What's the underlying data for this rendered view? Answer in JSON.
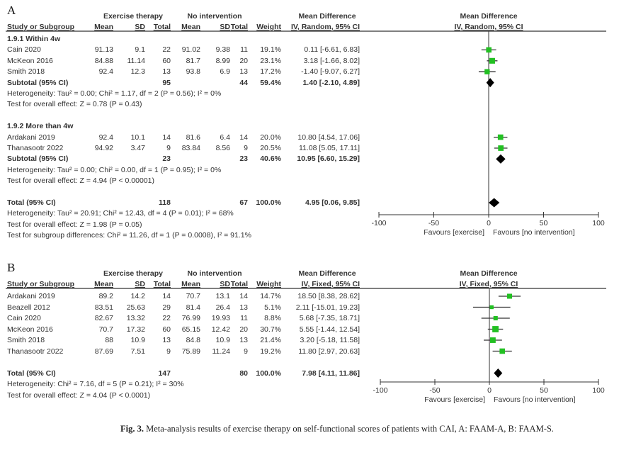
{
  "chart_data": [
    {
      "type": "forest",
      "panel": "A",
      "group_headers": {
        "exercise": "Exercise therapy",
        "control": "No intervention",
        "md": "Mean Difference"
      },
      "col_headers": [
        "Study or Subgroup",
        "Mean",
        "SD",
        "Total",
        "Mean",
        "SD",
        "Total",
        "Weight",
        "IV, Random, 95% CI"
      ],
      "plot_header": [
        "Mean Difference",
        "IV, Random, 95% CI"
      ],
      "axis": {
        "xlim": [
          -100,
          100
        ],
        "ticks": [
          "-100",
          "-50",
          "0",
          "50",
          "100"
        ],
        "left_label": "Favours [exercise]",
        "right_label": "Favours [no intervention]"
      },
      "rows": [
        {
          "kind": "heading",
          "name": "1.9.1 Within 4w"
        },
        {
          "kind": "study",
          "name": "Cain 2020",
          "e_mean": "91.13",
          "e_sd": "9.1",
          "e_total": "22",
          "c_mean": "91.02",
          "c_sd": "9.38",
          "c_total": "11",
          "weight": "19.1%",
          "md_text": "0.11 [-6.61, 6.83]",
          "md": 0.11,
          "lo": -6.61,
          "hi": 6.83,
          "w": 19.1
        },
        {
          "kind": "study",
          "name": "McKeon 2016",
          "e_mean": "84.88",
          "e_sd": "11.14",
          "e_total": "60",
          "c_mean": "81.7",
          "c_sd": "8.99",
          "c_total": "20",
          "weight": "23.1%",
          "md_text": "3.18 [-1.66, 8.02]",
          "md": 3.18,
          "lo": -1.66,
          "hi": 8.02,
          "w": 23.1
        },
        {
          "kind": "study",
          "name": "Smith 2018",
          "e_mean": "92.4",
          "e_sd": "12.3",
          "e_total": "13",
          "c_mean": "93.8",
          "c_sd": "6.9",
          "c_total": "13",
          "weight": "17.2%",
          "md_text": "-1.40 [-9.07, 6.27]",
          "md": -1.4,
          "lo": -9.07,
          "hi": 6.27,
          "w": 17.2
        },
        {
          "kind": "subtotal",
          "name": "Subtotal (95% CI)",
          "e_total": "95",
          "c_total": "44",
          "weight": "59.4%",
          "md_text": "1.40 [-2.10, 4.89]",
          "md": 1.4,
          "lo": -2.1,
          "hi": 4.89
        },
        {
          "kind": "note",
          "name": "Heterogeneity: Tau² = 0.00; Chi² = 1.17, df = 2 (P = 0.56); I² = 0%"
        },
        {
          "kind": "note",
          "name": "Test for overall effect: Z = 0.78 (P = 0.43)"
        },
        {
          "kind": "blank"
        },
        {
          "kind": "heading",
          "name": "1.9.2 More than 4w"
        },
        {
          "kind": "study",
          "name": "Ardakani 2019",
          "e_mean": "92.4",
          "e_sd": "10.1",
          "e_total": "14",
          "c_mean": "81.6",
          "c_sd": "6.4",
          "c_total": "14",
          "weight": "20.0%",
          "md_text": "10.80 [4.54, 17.06]",
          "md": 10.8,
          "lo": 4.54,
          "hi": 17.06,
          "w": 20.0
        },
        {
          "kind": "study",
          "name": "Thanasootr 2022",
          "e_mean": "94.92",
          "e_sd": "3.47",
          "e_total": "9",
          "c_mean": "83.84",
          "c_sd": "8.56",
          "c_total": "9",
          "weight": "20.5%",
          "md_text": "11.08 [5.05, 17.11]",
          "md": 11.08,
          "lo": 5.05,
          "hi": 17.11,
          "w": 20.5
        },
        {
          "kind": "subtotal",
          "name": "Subtotal (95% CI)",
          "e_total": "23",
          "c_total": "23",
          "weight": "40.6%",
          "md_text": "10.95 [6.60, 15.29]",
          "md": 10.95,
          "lo": 6.6,
          "hi": 15.29
        },
        {
          "kind": "note",
          "name": "Heterogeneity: Tau² = 0.00; Chi² = 0.00, df = 1 (P = 0.95); I² = 0%"
        },
        {
          "kind": "note",
          "name": "Test for overall effect: Z = 4.94 (P < 0.00001)"
        },
        {
          "kind": "blank"
        },
        {
          "kind": "total",
          "name": "Total (95% CI)",
          "e_total": "118",
          "c_total": "67",
          "weight": "100.0%",
          "md_text": "4.95 [0.06, 9.85]",
          "md": 4.95,
          "lo": 0.06,
          "hi": 9.85
        },
        {
          "kind": "note",
          "name": "Heterogeneity: Tau² = 20.91; Chi² = 12.43, df = 4 (P = 0.01); I² = 68%"
        },
        {
          "kind": "note",
          "name": "Test for overall effect: Z = 1.98 (P = 0.05)"
        },
        {
          "kind": "note",
          "name": "Test for subgroup differences: Chi² = 11.26, df = 1 (P = 0.0008), I² = 91.1%"
        }
      ]
    },
    {
      "type": "forest",
      "panel": "B",
      "group_headers": {
        "exercise": "Exercise therapy",
        "control": "No intervention",
        "md": "Mean Difference"
      },
      "col_headers": [
        "Study or Subgroup",
        "Mean",
        "SD",
        "Total",
        "Mean",
        "SD",
        "Total",
        "Weight",
        "IV, Fixed, 95% CI"
      ],
      "plot_header": [
        "Mean Difference",
        "IV, Fixed, 95% CI"
      ],
      "axis": {
        "xlim": [
          -100,
          100
        ],
        "ticks": [
          "-100",
          "-50",
          "0",
          "50",
          "100"
        ],
        "left_label": "Favours [exercise]",
        "right_label": "Favours [no intervention]"
      },
      "rows": [
        {
          "kind": "study",
          "name": "Ardakani 2019",
          "e_mean": "89.2",
          "e_sd": "14.2",
          "e_total": "14",
          "c_mean": "70.7",
          "c_sd": "13.1",
          "c_total": "14",
          "weight": "14.7%",
          "md_text": "18.50 [8.38, 28.62]",
          "md": 18.5,
          "lo": 8.38,
          "hi": 28.62,
          "w": 14.7
        },
        {
          "kind": "study",
          "name": "Beazell 2012",
          "e_mean": "83.51",
          "e_sd": "25.63",
          "e_total": "29",
          "c_mean": "81.4",
          "c_sd": "26.4",
          "c_total": "13",
          "weight": "5.1%",
          "md_text": "2.11 [-15.01, 19.23]",
          "md": 2.11,
          "lo": -15.01,
          "hi": 19.23,
          "w": 5.1
        },
        {
          "kind": "study",
          "name": "Cain 2020",
          "e_mean": "82.67",
          "e_sd": "13.32",
          "e_total": "22",
          "c_mean": "76.99",
          "c_sd": "19.93",
          "c_total": "11",
          "weight": "8.8%",
          "md_text": "5.68 [-7.35, 18.71]",
          "md": 5.68,
          "lo": -7.35,
          "hi": 18.71,
          "w": 8.8
        },
        {
          "kind": "study",
          "name": "McKeon 2016",
          "e_mean": "70.7",
          "e_sd": "17.32",
          "e_total": "60",
          "c_mean": "65.15",
          "c_sd": "12.42",
          "c_total": "20",
          "weight": "30.7%",
          "md_text": "5.55 [-1.44, 12.54]",
          "md": 5.55,
          "lo": -1.44,
          "hi": 12.54,
          "w": 30.7
        },
        {
          "kind": "study",
          "name": "Smith 2018",
          "e_mean": "88",
          "e_sd": "10.9",
          "e_total": "13",
          "c_mean": "84.8",
          "c_sd": "10.9",
          "c_total": "13",
          "weight": "21.4%",
          "md_text": "3.20 [-5.18, 11.58]",
          "md": 3.2,
          "lo": -5.18,
          "hi": 11.58,
          "w": 21.4
        },
        {
          "kind": "study",
          "name": "Thanasootr 2022",
          "e_mean": "87.69",
          "e_sd": "7.51",
          "e_total": "9",
          "c_mean": "75.89",
          "c_sd": "11.24",
          "c_total": "9",
          "weight": "19.2%",
          "md_text": "11.80 [2.97, 20.63]",
          "md": 11.8,
          "lo": 2.97,
          "hi": 20.63,
          "w": 19.2
        },
        {
          "kind": "blank"
        },
        {
          "kind": "total",
          "name": "Total (95% CI)",
          "e_total": "147",
          "c_total": "80",
          "weight": "100.0%",
          "md_text": "7.98 [4.11, 11.86]",
          "md": 7.98,
          "lo": 4.11,
          "hi": 11.86
        },
        {
          "kind": "note",
          "name": "Heterogeneity: Chi² = 7.16, df = 5 (P = 0.21); I² = 30%"
        },
        {
          "kind": "note",
          "name": "Test for overall effect: Z = 4.04 (P < 0.0001)"
        }
      ]
    }
  ],
  "colors": {
    "study_marker": "#22c022",
    "summary": "#000000",
    "line": "#333333"
  },
  "caption": {
    "label": "Fig. 3.",
    "text": "Meta-analysis results of exercise therapy on self-functional scores of patients with CAI, A: FAAM-A, B: FAAM-S."
  }
}
